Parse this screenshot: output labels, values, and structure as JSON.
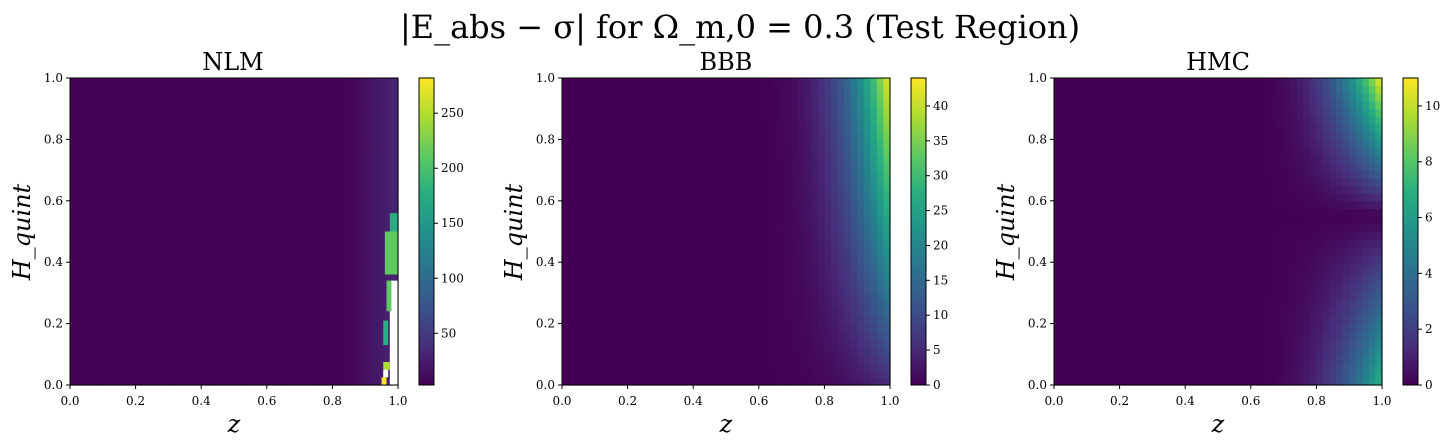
{
  "figure": {
    "suptitle": "|E_abs − σ| for Ω_m,0 = 0.3 (Test Region)"
  },
  "chart_data": [
    {
      "type": "heatmap",
      "title": "NLM",
      "xlabel": "z",
      "ylabel": "H_quint",
      "xlim": [
        0,
        1
      ],
      "ylim": [
        0,
        1
      ],
      "xticks": [
        "0.0",
        "0.2",
        "0.4",
        "0.6",
        "0.8",
        "1.0"
      ],
      "yticks": [
        "0.0",
        "0.2",
        "0.4",
        "0.6",
        "0.8",
        "1.0"
      ],
      "colormap": "viridis",
      "colorbar_range": [
        3,
        282
      ],
      "colorbar_ticks": [
        50,
        100,
        150,
        200,
        250
      ],
      "colorbar_labels": [
        "50",
        "100",
        "150",
        "200",
        "250"
      ],
      "approx_max_value": 280,
      "pattern": "near-zero over most of the domain; values rise only in a narrow strip near z≈0.95–1.0; several white (missing) cells and bright green/yellow spikes at the right edge for H_quint below ≈0.5"
    },
    {
      "type": "heatmap",
      "title": "BBB",
      "xlabel": "z",
      "ylabel": "H_quint",
      "xlim": [
        0,
        1
      ],
      "ylim": [
        0,
        1
      ],
      "xticks": [
        "0.0",
        "0.2",
        "0.4",
        "0.6",
        "0.8",
        "1.0"
      ],
      "yticks": [
        "0.0",
        "0.2",
        "0.4",
        "0.6",
        "0.8",
        "1.0"
      ],
      "colormap": "viridis",
      "colorbar_range": [
        0,
        44
      ],
      "colorbar_ticks": [
        0,
        5,
        10,
        15,
        20,
        25,
        30,
        35,
        40
      ],
      "colorbar_labels": [
        "0",
        "5",
        "10",
        "15",
        "20",
        "25",
        "30",
        "35",
        "40"
      ],
      "approx_max_value": 43,
      "pattern": "error grows with z and with H_quint; maximum (~43) at the top-right corner (z=1, H_quint=1); low along the bottom"
    },
    {
      "type": "heatmap",
      "title": "HMC",
      "xlabel": "z",
      "ylabel": "H_quint",
      "xlim": [
        0,
        1
      ],
      "ylim": [
        0,
        1
      ],
      "xticks": [
        "0.0",
        "0.2",
        "0.4",
        "0.6",
        "0.8",
        "1.0"
      ],
      "yticks": [
        "0.0",
        "0.2",
        "0.4",
        "0.6",
        "0.8",
        "1.0"
      ],
      "colormap": "viridis",
      "colorbar_range": [
        0,
        11
      ],
      "colorbar_ticks": [
        0,
        2,
        4,
        6,
        8,
        10
      ],
      "colorbar_labels": [
        "0",
        "2",
        "4",
        "6",
        "8",
        "10"
      ],
      "approx_max_value": 10.8,
      "pattern": "error grows with z toward the right edge, with a dark valley near H_quint≈0.55 at z=1; maximum (~10.8) at the top-right corner, secondary maximum (~7) at the bottom-right"
    }
  ]
}
